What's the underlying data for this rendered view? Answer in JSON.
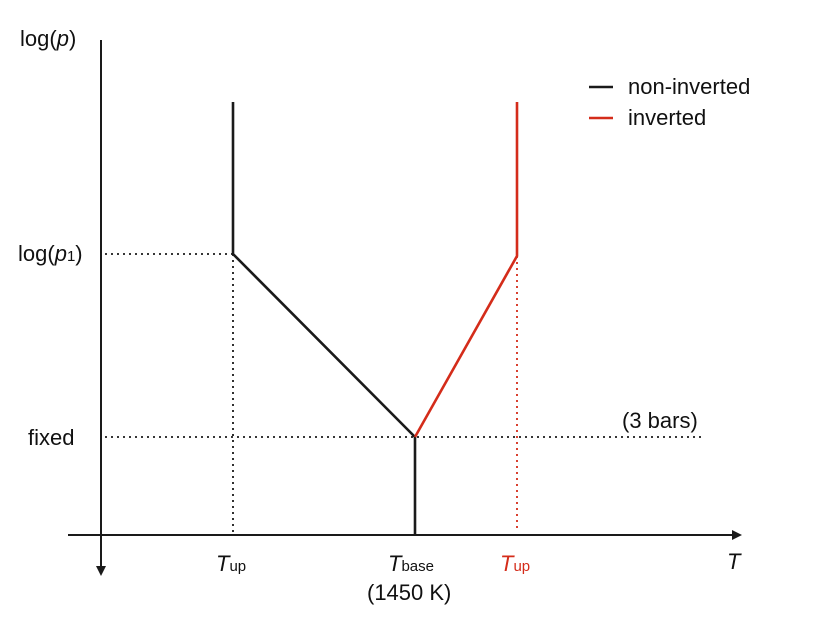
{
  "axes": {
    "y_label_prefix": "log(",
    "y_label_var": "p",
    "y_label_suffix": ")",
    "x_label": "T"
  },
  "y_ticks": {
    "p1_prefix": "log(",
    "p1_var": "p",
    "p1_sub": "1",
    "p1_suffix": ")",
    "fixed": "fixed"
  },
  "x_ticks": {
    "tup_left_main": "T",
    "tup_left_sub": "up",
    "tbase_main": "T",
    "tbase_sub": "base",
    "tbase_note": "(1450 K)",
    "tup_right_main": "T",
    "tup_right_sub": "up"
  },
  "annotation": "(3 bars)",
  "legend": [
    {
      "label": "non-inverted",
      "color": "#1a1a1a"
    },
    {
      "label": "inverted",
      "color": "#d42c1a"
    }
  ],
  "colors": {
    "black_line": "#1a1a1a",
    "red_line": "#d42c1a",
    "axis": "#1a1a1a"
  }
}
